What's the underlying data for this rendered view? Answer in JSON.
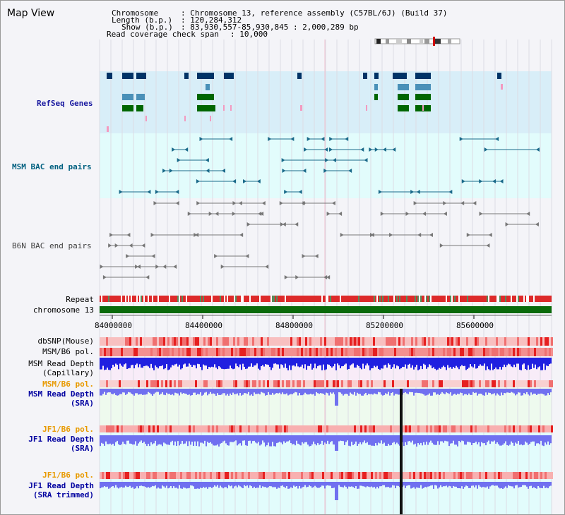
{
  "title": "Map View",
  "header": {
    "chromosome_label": "Chromosome",
    "chromosome_value": ": Chromosome 13, reference assembly (C57BL/6J) (Build 37)",
    "length_label": "Length (b.p.)",
    "length_value": ": 120,284,312",
    "show_label": "Show (b.p.)",
    "show_value": ": 83,930,557-85,930,845 : 2,000,289 bp",
    "coverage_label": "Read coverage check span",
    "coverage_value": ": 10,000"
  },
  "tracks": {
    "refseq": "RefSeq Genes",
    "msm_bac": "MSM BAC end pairs",
    "b6n_bac": "B6N BAC end pairs",
    "repeat": "Repeat",
    "chromosome": "chromosome 13",
    "dbsnp": "dbSNP(Mouse)",
    "msm_b6_pol": "MSM/B6 pol.",
    "msm_depth_cap_1": "MSM Read Depth",
    "msm_depth_cap_2": "(Capillary)",
    "msm_b6_pol2": "MSM/B6 pol.",
    "msm_depth_sra_1": "MSM Read Depth",
    "msm_depth_sra_2": "(SRA)",
    "jf1_b6_pol": "JF1/B6 pol.",
    "jf1_depth_sra_1": "JF1 Read Depth",
    "jf1_depth_sra_2": "(SRA)",
    "jf1_b6_pol2": "JF1/B6 pol.",
    "jf1_depth_trim_1": "JF1 Read Depth",
    "jf1_depth_trim_2": "(SRA trimmed)"
  },
  "axis_ticks": [
    "84000000",
    "84400000",
    "84800000",
    "85200000",
    "85600000"
  ],
  "colors": {
    "refseq_bg": "#d8eef8",
    "msm_bg": "#e2fcfc",
    "b6n_bg": "#f4f4f8",
    "chromosome_bar": "#0a6a0a",
    "gene_dark": "#003366",
    "gene_mid": "#4a90b8",
    "gene_green": "#006600",
    "msm_label": "#006080",
    "b6n_label": "#303030",
    "pol_label": "#e89a00",
    "depth_label": "#0000a0",
    "depth_bar": "#7070f0",
    "depth_bar_dark": "#2020e0"
  }
}
